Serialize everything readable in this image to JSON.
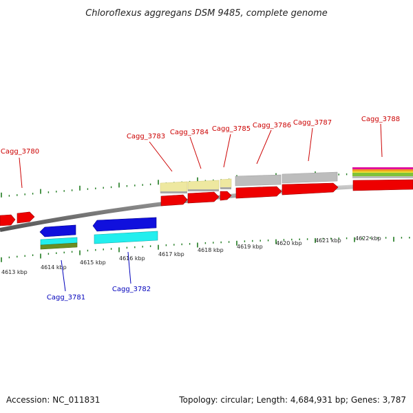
{
  "title": "Chloroflexus aggregans DSM 9485, complete genome",
  "footer": {
    "accession": "Accession: NC_011831",
    "summary": "Topology: circular; Length: 4,684,931 bp; Genes: 3,787"
  },
  "colors": {
    "forward_gene": "#ee0000",
    "reverse_gene": "#1010dd",
    "top_label": "#cc0000",
    "bottom_label": "#0000bb",
    "tick": "#1e7a1e",
    "backbone": "#888888",
    "feature_cyan": "#22eeee",
    "feature_khaki": "#eee8a0",
    "feature_grey": "#bdbdbd",
    "feature_olive": "#6b8e23"
  },
  "scale_labels": [
    "4613 kbp",
    "4614 kbp",
    "4615 kbp",
    "4616 kbp",
    "4617 kbp",
    "4618 kbp",
    "4619 kbp",
    "4620 kbp",
    "4621 kbp",
    "4622 kbp"
  ],
  "top_gene_labels": [
    "Cagg_3780",
    "Cagg_3783",
    "Cagg_3784",
    "Cagg_3785",
    "Cagg_3786",
    "Cagg_3787",
    "Cagg_3788"
  ],
  "bottom_gene_labels": [
    "Cagg_3781",
    "Cagg_3782"
  ]
}
